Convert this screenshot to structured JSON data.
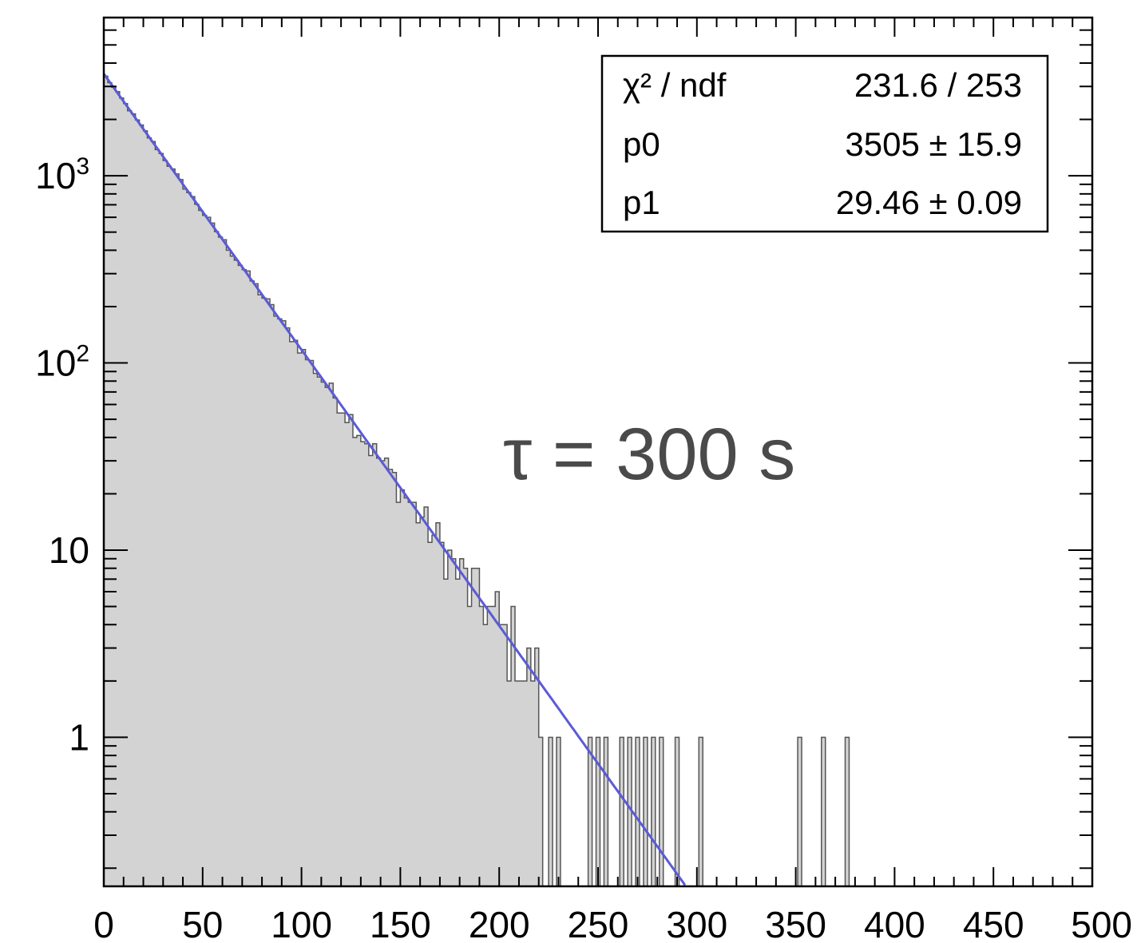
{
  "chart_data": {
    "type": "histogram",
    "xlim": [
      0,
      500
    ],
    "ylim": [
      0.16,
      7000
    ],
    "yscale": "log",
    "x_ticks": [
      "0",
      "50",
      "100",
      "150",
      "200",
      "250",
      "300",
      "350",
      "400",
      "450",
      "500"
    ],
    "y_ticks": [
      {
        "value": 1,
        "label": "1"
      },
      {
        "value": 10,
        "label": "10"
      },
      {
        "value": 100,
        "label": "10",
        "exponent": "2"
      },
      {
        "value": 1000,
        "label": "10",
        "exponent": "3"
      }
    ],
    "grid": false,
    "fill_color": "#d3d3d3",
    "edge_color": "#555555",
    "fit_color": "#5b5bd6",
    "bin_width": 2,
    "fit": {
      "function": "p0*exp(-x/p1)",
      "p0": 3505,
      "p1": 29.46
    },
    "sparse_hits_x": [
      225,
      229,
      245,
      249,
      253,
      261,
      265,
      269,
      273,
      277,
      281,
      289,
      301,
      351,
      363,
      375
    ],
    "stats_box": {
      "rows": [
        {
          "name": "χ² / ndf",
          "value": "231.6 / 253"
        },
        {
          "name": "p0",
          "value": "3505 ± 15.9"
        },
        {
          "name": "p1",
          "value": "29.46 ± 0.09"
        }
      ]
    },
    "annotation": "τ = 300 s"
  }
}
